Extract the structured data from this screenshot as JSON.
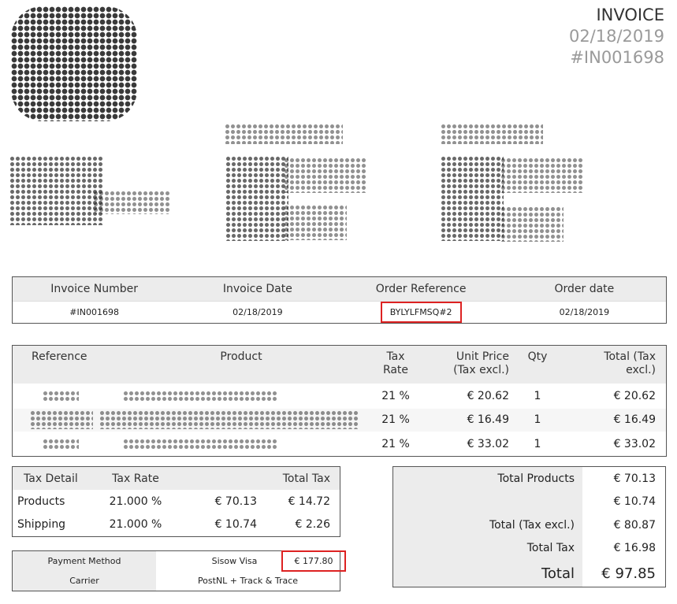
{
  "header": {
    "title": "INVOICE",
    "date": "02/18/2019",
    "number": "#IN001698"
  },
  "invoice_info": {
    "headers": [
      "Invoice Number",
      "Invoice Date",
      "Order Reference",
      "Order date"
    ],
    "values": [
      "#IN001698",
      "02/18/2019",
      "BYLYLFMSQ#2",
      "02/18/2019"
    ]
  },
  "products": {
    "headers": {
      "reference": "Reference",
      "product": "Product",
      "tax_rate": "Tax Rate",
      "unit_price": "Unit Price (Tax excl.)",
      "qty": "Qty",
      "total": "Total (Tax excl.)"
    },
    "rows": [
      {
        "tax_rate": "21 %",
        "unit_price": "€ 20.62",
        "qty": "1",
        "total": "€ 20.62"
      },
      {
        "tax_rate": "21 %",
        "unit_price": "€ 16.49",
        "qty": "1",
        "total": "€ 16.49"
      },
      {
        "tax_rate": "21 %",
        "unit_price": "€ 33.02",
        "qty": "1",
        "total": "€ 33.02"
      }
    ]
  },
  "tax_detail": {
    "headers": [
      "Tax Detail",
      "Tax Rate",
      "",
      "Total Tax"
    ],
    "rows": [
      {
        "label": "Products",
        "rate": "21.000 %",
        "base": "€ 70.13",
        "tax": "€ 14.72"
      },
      {
        "label": "Shipping",
        "rate": "21.000 %",
        "base": "€ 10.74",
        "tax": "€ 2.26"
      }
    ]
  },
  "totals": {
    "rows": [
      {
        "label": "Total Products",
        "value": "€ 70.13"
      },
      {
        "label": "",
        "value": "€ 10.74"
      },
      {
        "label": "Total (Tax excl.)",
        "value": "€ 80.87"
      },
      {
        "label": "Total Tax",
        "value": "€ 16.98"
      },
      {
        "label": "Total",
        "value": "€ 97.85"
      }
    ]
  },
  "payment": {
    "method_label": "Payment Method",
    "method_value": "Sisow Visa",
    "amount": "€ 177.80",
    "carrier_label": "Carrier",
    "carrier_value": "PostNL + Track & Trace"
  },
  "colors": {
    "highlight_border": "#dd2222",
    "header_bg": "#ececec"
  }
}
